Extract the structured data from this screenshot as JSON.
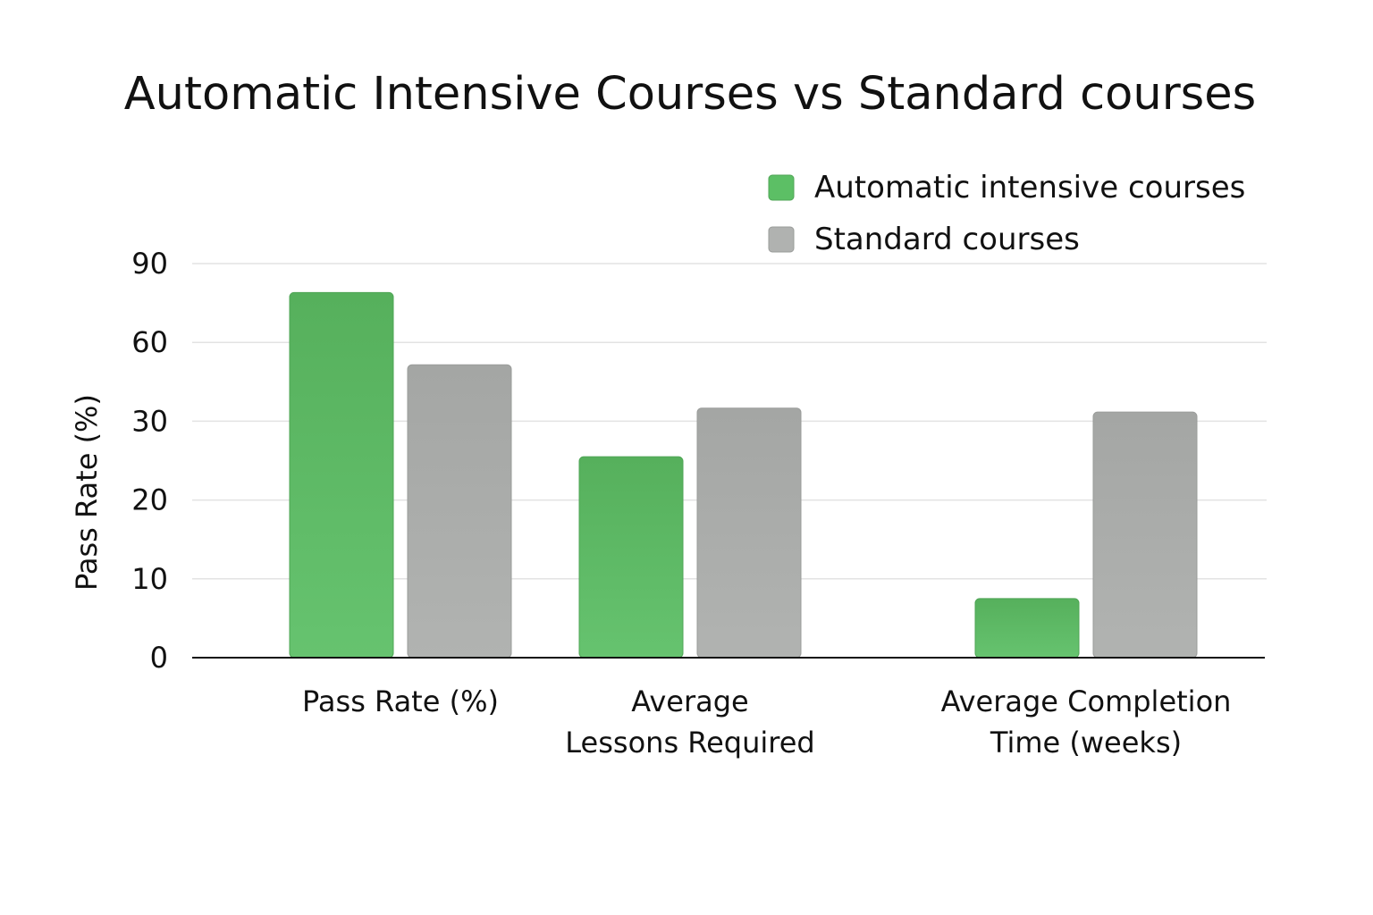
{
  "chart_data": {
    "type": "bar",
    "title": "Automatic Intensive Courses vs Standard courses",
    "ylabel": "Pass Rate (%)",
    "xlabel": "",
    "yticks": [
      "0",
      "10",
      "20",
      "30",
      "60",
      "90"
    ],
    "categories": [
      [
        "Pass Rate (%)"
      ],
      [
        "Average",
        "Lessons Required"
      ],
      [
        "Average Completion",
        "Time (weeks)"
      ]
    ],
    "series": [
      {
        "name": "Automatic intensive courses",
        "color": "#5cbf65",
        "values": [
          79,
          25.5,
          7.5
        ]
      },
      {
        "name": "Standard courses",
        "color": "#a9aba9",
        "values": [
          51.5,
          35,
          33.5
        ]
      }
    ],
    "legend_position": "top-right",
    "grid": true
  }
}
